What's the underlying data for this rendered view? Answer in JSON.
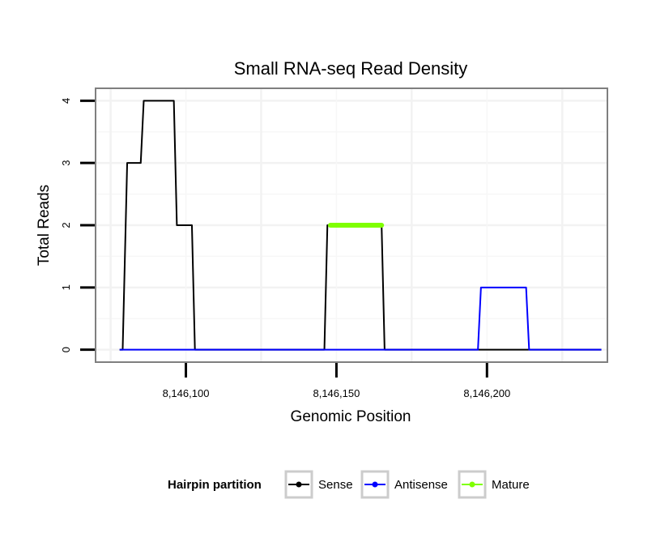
{
  "chart_data": {
    "type": "line",
    "title": "Small RNA-seq Read Density",
    "xlabel": "Genomic Position",
    "ylabel": "Total Reads",
    "xlim": [
      8146070,
      8146240
    ],
    "ylim": [
      -0.2,
      4.2
    ],
    "x_ticks": [
      {
        "value": 8146100,
        "label": "8,146,100"
      },
      {
        "value": 8146150,
        "label": "8,146,150"
      },
      {
        "value": 8146200,
        "label": "8,146,200"
      }
    ],
    "y_ticks": [
      {
        "value": 0,
        "label": "0"
      },
      {
        "value": 1,
        "label": "1"
      },
      {
        "value": 2,
        "label": "2"
      },
      {
        "value": 3,
        "label": "3"
      },
      {
        "value": 4,
        "label": "4"
      }
    ],
    "grid": true,
    "legend": {
      "title": "Hairpin partition",
      "position": "bottom",
      "entries": [
        {
          "name": "Sense",
          "color": "#000000"
        },
        {
          "name": "Antisense",
          "color": "#0000ff"
        },
        {
          "name": "Mature",
          "color": "#7fff00"
        }
      ]
    },
    "series": [
      {
        "name": "Sense",
        "color": "#000000",
        "width": 2,
        "x": [
          8146078,
          8146079,
          8146080,
          8146080.5,
          8146085,
          8146086,
          8146093,
          8146096,
          8146097,
          8146101,
          8146102,
          8146103,
          8146146,
          8146147,
          8146165,
          8146166,
          8146238
        ],
        "y": [
          0,
          0,
          2,
          3,
          3,
          4,
          4,
          4,
          2,
          2,
          2,
          0,
          0,
          2,
          2,
          0,
          0
        ]
      },
      {
        "name": "Antisense",
        "color": "#0000ff",
        "width": 2,
        "x": [
          8146078,
          8146197,
          8146198,
          8146213,
          8146214,
          8146238
        ],
        "y": [
          0,
          0,
          1,
          1,
          0,
          0
        ]
      },
      {
        "name": "Mature",
        "color": "#7fff00",
        "width": 6,
        "x": [
          8146148,
          8146165
        ],
        "y": [
          2,
          2
        ]
      }
    ]
  }
}
